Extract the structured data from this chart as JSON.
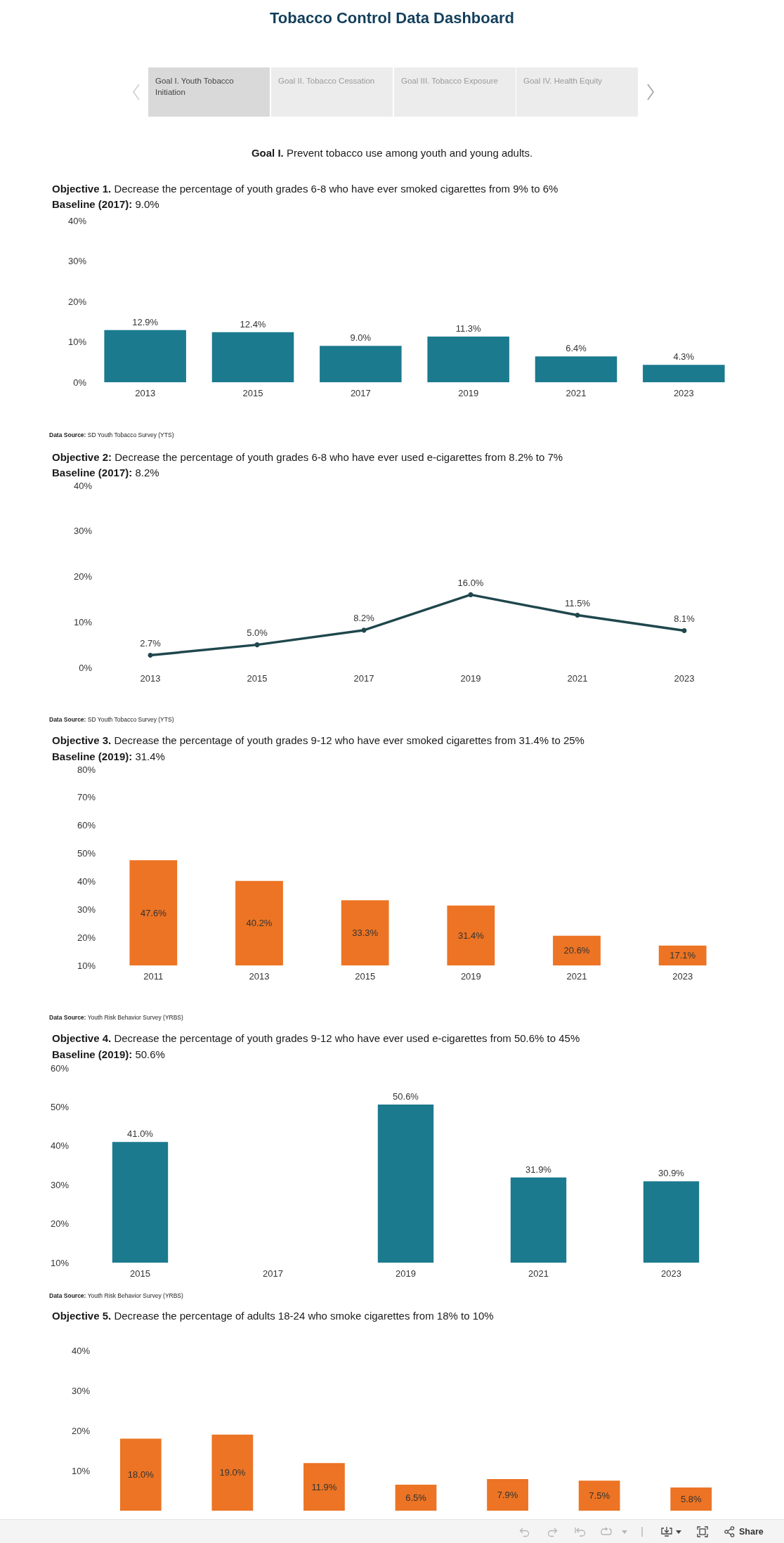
{
  "chart_data": [
    {
      "type": "other",
      "title": "Tobacco Control Data Dashboard",
      "subtitle": "Goal I. Prevent tobacco use among youth and young adults.",
      "annotations": [
        "Goal I. Youth Tobacco Initiation",
        "Goal II. Tobacco Cessation",
        "Goal III. Tobacco Exposure",
        "Goal IV. Health Equity"
      ]
    },
    {
      "type": "bar",
      "title": "Objective 1. Decrease the percentage of youth grades 6-8 who have ever smoked cigarettes from 9% to 6%",
      "subtitle": "Baseline (2017): 9.0%",
      "categories": [
        "2013",
        "2015",
        "2017",
        "2019",
        "2021",
        "2023"
      ],
      "values": [
        12.9,
        12.4,
        9.0,
        11.3,
        6.4,
        4.3
      ],
      "value_labels": [
        "12.9%",
        "12.4%",
        "9.0%",
        "11.3%",
        "6.4%",
        "4.3%"
      ],
      "color": "#1b7a8e",
      "ylim": [
        0,
        40
      ],
      "yticks": [
        {
          "value": 0,
          "label": "0%"
        },
        {
          "value": 10,
          "label": "10%"
        },
        {
          "value": 20,
          "label": "20%"
        },
        {
          "value": 30,
          "label": "30%"
        },
        {
          "value": 40,
          "label": "40%"
        }
      ],
      "annotations": [
        "Data Source: SD Youth Tobacco Survey (YTS)"
      ]
    },
    {
      "type": "line",
      "title": "Objective 2: Decrease the percentage of youth grades 6-8 who have ever used e-cigarettes from 8.2% to 7%",
      "subtitle": "Baseline (2017): 8.2%",
      "categories": [
        "2013",
        "2015",
        "2017",
        "2019",
        "2021",
        "2023"
      ],
      "values": [
        2.7,
        5.0,
        8.2,
        16.0,
        11.5,
        8.1
      ],
      "value_labels": [
        "2.7%",
        "5.0%",
        "8.2%",
        "16.0%",
        "11.5%",
        "8.1%"
      ],
      "color": "#1f474d",
      "marker": "circle",
      "line_style": "solid",
      "ylim": [
        0,
        40
      ],
      "yticks": [
        {
          "value": 0,
          "label": "0%"
        },
        {
          "value": 10,
          "label": "10%"
        },
        {
          "value": 20,
          "label": "20%"
        },
        {
          "value": 30,
          "label": "30%"
        },
        {
          "value": 40,
          "label": "40%"
        }
      ],
      "annotations": [
        "Data Source: SD Youth Tobacco Survey (YTS)"
      ]
    },
    {
      "type": "bar",
      "title": "Objective 3. Decrease the percentage of youth grades 9-12 who have ever smoked cigarettes from 31.4% to 25%",
      "subtitle": "Baseline (2019): 31.4%",
      "categories": [
        "2011",
        "2013",
        "2015",
        "2019",
        "2021",
        "2023"
      ],
      "values": [
        47.6,
        40.2,
        33.3,
        31.4,
        20.6,
        17.1
      ],
      "value_labels": [
        "47.6%",
        "40.2%",
        "33.3%",
        "31.4%",
        "20.6%",
        "17.1%"
      ],
      "color": "#ec7424",
      "ylim": [
        10,
        80
      ],
      "yticks": [
        {
          "value": 10,
          "label": "10%"
        },
        {
          "value": 20,
          "label": "20%"
        },
        {
          "value": 30,
          "label": "30%"
        },
        {
          "value": 40,
          "label": "40%"
        },
        {
          "value": 50,
          "label": "50%"
        },
        {
          "value": 60,
          "label": "60%"
        },
        {
          "value": 70,
          "label": "70%"
        },
        {
          "value": 80,
          "label": "80%"
        }
      ],
      "annotations": [
        "Data Source: Youth Risk Behavior Survey (YRBS)"
      ]
    },
    {
      "type": "bar",
      "title": "Objective 4. Decrease the percentage of youth grades 9-12 who have ever used e-cigarettes from 50.6% to 45%",
      "subtitle": "Baseline (2019): 50.6%",
      "categories": [
        "2015",
        "2017",
        "2019",
        "2021",
        "2023"
      ],
      "values": [
        41.0,
        null,
        50.6,
        31.9,
        30.9
      ],
      "value_labels": [
        "41.0%",
        null,
        "50.6%",
        "31.9%",
        "30.9%"
      ],
      "color": "#1b7a8e",
      "ylim": [
        10,
        60
      ],
      "yticks": [
        {
          "value": 10,
          "label": "10%"
        },
        {
          "value": 20,
          "label": "20%"
        },
        {
          "value": 30,
          "label": "30%"
        },
        {
          "value": 40,
          "label": "40%"
        },
        {
          "value": 50,
          "label": "50%"
        },
        {
          "value": 60,
          "label": "60%"
        }
      ],
      "annotations": [
        "Data Source: Youth Risk Behavior Survey (YRBS)"
      ]
    },
    {
      "type": "bar",
      "title": "Objective 5. Decrease the percentage of adults 18-24 who smoke cigarettes from 18% to 10%",
      "categories": [
        null,
        null,
        null,
        null,
        null,
        null,
        null
      ],
      "values": [
        18.0,
        19.0,
        11.9,
        6.5,
        7.9,
        7.5,
        5.8
      ],
      "value_labels": [
        "18.0%",
        "19.0%",
        "11.9%",
        "6.5%",
        "7.9%",
        "7.5%",
        "5.8%"
      ],
      "color": "#ec7424",
      "ylim": [
        0,
        40
      ],
      "yticks": [
        {
          "value": 10,
          "label": "10%"
        },
        {
          "value": 20,
          "label": "20%"
        },
        {
          "value": 30,
          "label": "30%"
        },
        {
          "value": 40,
          "label": "40%"
        }
      ],
      "tick_labels": "y"
    },
    {
      "type": "other",
      "annotations": [
        "Share"
      ]
    }
  ]
}
